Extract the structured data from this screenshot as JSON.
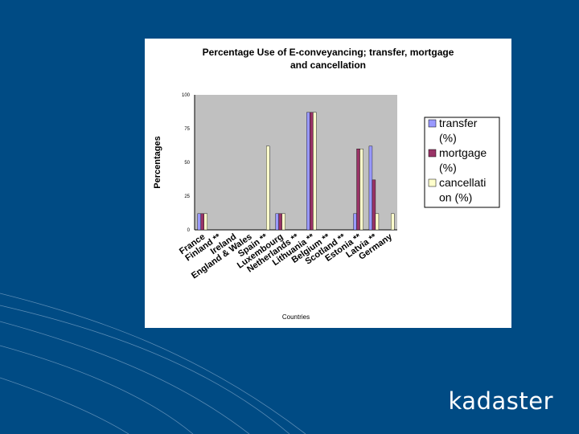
{
  "slide": {
    "logo_text": "kadaster",
    "colors": {
      "background": "#004b84",
      "chart_area": "#ffffff",
      "plot_area": "#c0c0c0",
      "line": "#7fa6c8"
    }
  },
  "chart_data": {
    "type": "bar",
    "title": "Percentage Use of E-conveyancing; transfer, mortgage and cancellation",
    "title_lines": [
      "Percentage Use of E-conveyancing; transfer, mortgage",
      "and cancellation"
    ],
    "xlabel": "Countries",
    "ylabel": "Percentages",
    "ylim": [
      0,
      100
    ],
    "yticks": [
      0,
      25,
      50,
      75,
      100
    ],
    "grid": false,
    "legend": "right",
    "categories": [
      "France",
      "Finland **",
      "Ireland",
      "England & Wales",
      "Spain **",
      "Luxembourg",
      "Netherlands **",
      "Lithuania **",
      "Belgium **",
      "Scotland **",
      "Estonia **",
      "Latvia **",
      "Germany"
    ],
    "series": [
      {
        "name": "transfer (%)",
        "legend_lines": [
          "transfer",
          "(%)"
        ],
        "color": "#9999ff",
        "values": [
          12,
          0,
          0,
          0,
          0,
          12,
          0,
          87,
          0,
          0,
          12,
          62,
          0
        ]
      },
      {
        "name": "mortgage (%)",
        "legend_lines": [
          "mortgage",
          "(%)"
        ],
        "color": "#993366",
        "values": [
          12,
          0,
          0,
          0,
          0,
          12,
          0,
          87,
          0,
          0,
          60,
          37,
          0
        ]
      },
      {
        "name": "cancellation (%)",
        "legend_lines": [
          "cancellati",
          "on (%)"
        ],
        "color": "#ffffcc",
        "values": [
          12,
          0,
          0,
          0,
          62,
          12,
          0,
          87,
          0,
          0,
          60,
          12,
          12
        ]
      }
    ]
  }
}
